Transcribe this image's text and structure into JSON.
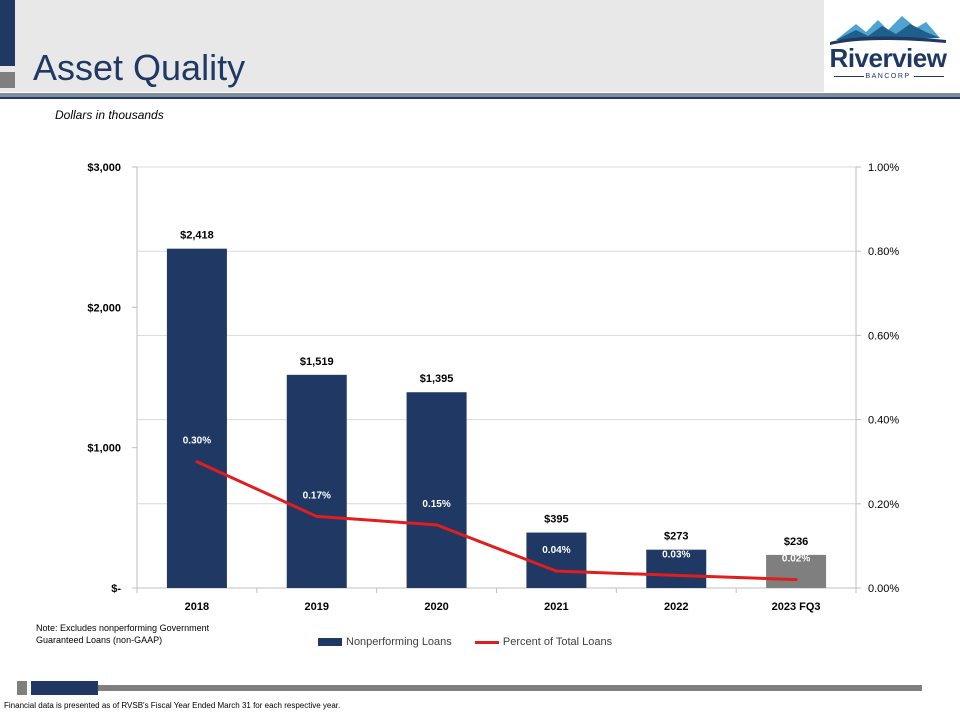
{
  "header": {
    "title": "Asset Quality",
    "logo_name": "Riverview",
    "logo_sub": "BANCORP"
  },
  "subtitle": "Dollars in thousands",
  "note": "Note: Excludes nonperforming Government Guaranteed Loans (non-GAAP)",
  "footnote": "Financial data is presented as of RVSB's Fiscal Year Ended March 31 for each respective year.",
  "colors": {
    "navy": "#1f3864",
    "gray_bar": "#7f7f7f",
    "line_red": "#e01e1e"
  },
  "chart_data": {
    "type": "bar",
    "categories": [
      "2018",
      "2019",
      "2020",
      "2021",
      "2022",
      "2023 FQ3"
    ],
    "series": [
      {
        "name": "Nonperforming Loans",
        "type": "bar",
        "axis": "left",
        "values": [
          2418,
          1519,
          1395,
          395,
          273,
          236
        ],
        "labels": [
          "$2,418",
          "$1,519",
          "$1,395",
          "$395",
          "$273",
          "$236"
        ]
      },
      {
        "name": "Percent of Total Loans",
        "type": "line",
        "axis": "right",
        "values": [
          0.3,
          0.17,
          0.15,
          0.04,
          0.03,
          0.02
        ],
        "labels": [
          "0.30%",
          "0.17%",
          "0.15%",
          "0.04%",
          "0.03%",
          "0.02%"
        ]
      }
    ],
    "ylim_left": [
      0,
      3000
    ],
    "yticks_left": [
      0,
      1000,
      2000,
      3000
    ],
    "ytick_labels_left": [
      "$-",
      "$1,000",
      "$2,000",
      "$3,000"
    ],
    "ylim_right": [
      0,
      1.0
    ],
    "yticks_right": [
      0,
      0.2,
      0.4,
      0.6,
      0.8,
      1.0
    ],
    "ytick_labels_right": [
      "0.00%",
      "0.20%",
      "0.40%",
      "0.60%",
      "0.80%",
      "1.00%"
    ],
    "grid": true,
    "legend_position": "bottom"
  }
}
